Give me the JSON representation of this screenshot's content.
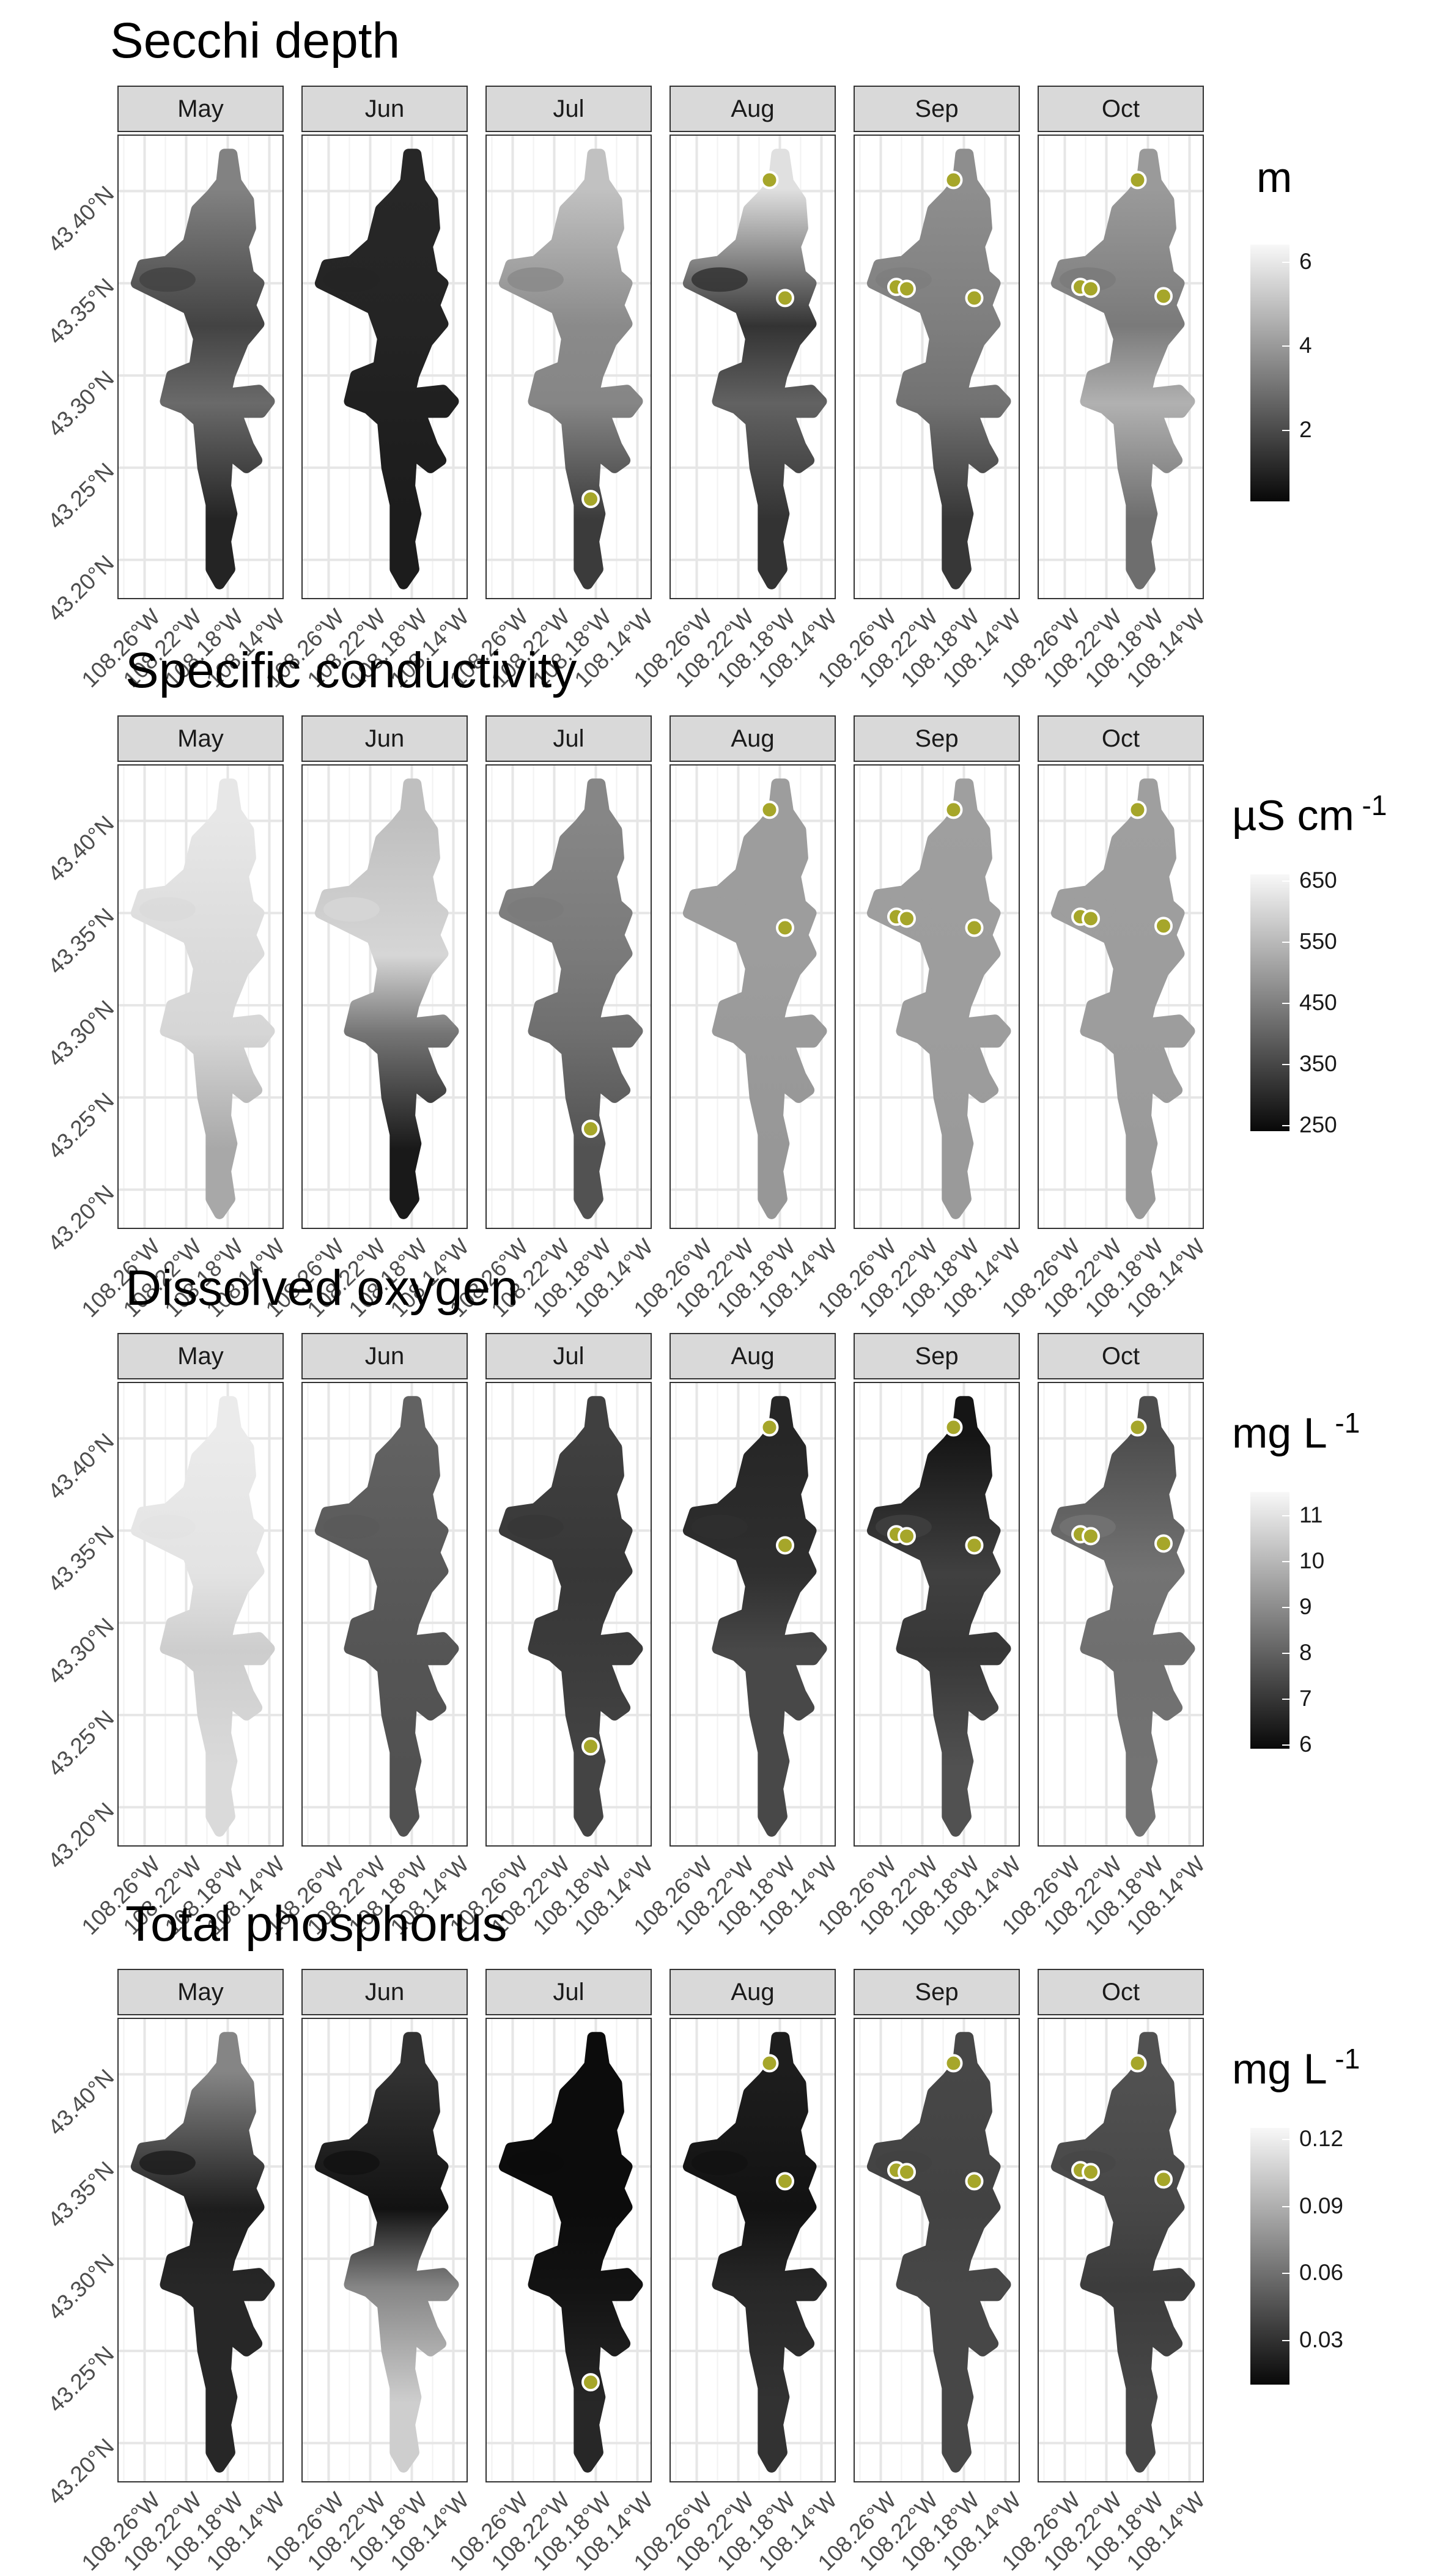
{
  "chart_data": [
    {
      "type": "heatmap",
      "title": "Secchi depth",
      "facets": [
        "May",
        "Jun",
        "Jul",
        "Aug",
        "Sep",
        "Oct"
      ],
      "y_tick_labels": [
        "43.40°N",
        "43.35°N",
        "43.30°N",
        "43.25°N",
        "43.20°N"
      ],
      "x_tick_labels": [
        "108.26°W",
        "108.22°W",
        "108.18°W",
        "108.14°W"
      ],
      "legend_title": "m",
      "legend_title_sup": "",
      "legend_ticks": [
        "6",
        "4",
        "2"
      ],
      "legend_tick_values": [
        6,
        4,
        2
      ],
      "legend_range": [
        0.3,
        6.4
      ],
      "grid": true,
      "legend_position": "right",
      "panel_values": {
        "May": {
          "north": 3.4,
          "west_arm": 1.8,
          "middle": 2.8,
          "south": 1.0
        },
        "Jun": {
          "north": 1.1,
          "west_arm": 1.0,
          "middle": 0.9,
          "south": 0.8
        },
        "Jul": {
          "north": 5.0,
          "west_arm": 3.6,
          "middle": 3.5,
          "south": 1.6
        },
        "Aug": {
          "north": 5.8,
          "west_arm": 1.4,
          "middle": 2.6,
          "south": 1.4
        },
        "Sep": {
          "north": 3.7,
          "west_arm": 3.3,
          "middle": 3.0,
          "south": 1.5
        },
        "Oct": {
          "north": 4.0,
          "west_arm": 3.2,
          "middle": 4.6,
          "south": 2.9
        }
      },
      "sites": {
        "May": [],
        "Jun": [],
        "Jul": [
          [
            -108.185,
            43.233
          ]
        ],
        "Aug": [
          [
            -108.19,
            43.406
          ],
          [
            -108.175,
            43.342
          ]
        ],
        "Sep": [
          [
            -108.245,
            43.348
          ],
          [
            -108.235,
            43.347
          ],
          [
            -108.19,
            43.406
          ],
          [
            -108.17,
            43.342
          ]
        ],
        "Oct": [
          [
            -108.245,
            43.348
          ],
          [
            -108.235,
            43.347
          ],
          [
            -108.19,
            43.406
          ],
          [
            -108.165,
            43.343
          ]
        ]
      }
    },
    {
      "type": "heatmap",
      "title": "Specific conductivity",
      "facets": [
        "May",
        "Jun",
        "Jul",
        "Aug",
        "Sep",
        "Oct"
      ],
      "y_tick_labels": [
        "43.40°N",
        "43.35°N",
        "43.30°N",
        "43.25°N",
        "43.20°N"
      ],
      "x_tick_labels": [
        "108.26°W",
        "108.22°W",
        "108.18°W",
        "108.14°W"
      ],
      "legend_title": "µS cm",
      "legend_title_sup": "-1",
      "legend_ticks": [
        "650",
        "550",
        "450",
        "350",
        "250"
      ],
      "legend_tick_values": [
        650,
        550,
        450,
        350,
        250
      ],
      "legend_range": [
        240,
        660
      ],
      "grid": true,
      "legend_position": "right",
      "panel_values": {
        "May": {
          "north": 630,
          "west_arm": 610,
          "middle": 600,
          "south": 520
        },
        "Jun": {
          "north": 560,
          "west_arm": 600,
          "middle": 430,
          "south": 270
        },
        "Jul": {
          "north": 460,
          "west_arm": 440,
          "middle": 420,
          "south": 370
        },
        "Aug": {
          "north": 500,
          "west_arm": 500,
          "middle": 495,
          "south": 490
        },
        "Sep": {
          "north": 505,
          "west_arm": 500,
          "middle": 500,
          "south": 495
        },
        "Oct": {
          "north": 505,
          "west_arm": 500,
          "middle": 500,
          "south": 495
        }
      },
      "sites": {
        "May": [],
        "Jun": [],
        "Jul": [
          [
            -108.185,
            43.233
          ]
        ],
        "Aug": [
          [
            -108.19,
            43.406
          ],
          [
            -108.175,
            43.342
          ]
        ],
        "Sep": [
          [
            -108.245,
            43.348
          ],
          [
            -108.235,
            43.347
          ],
          [
            -108.19,
            43.406
          ],
          [
            -108.17,
            43.342
          ]
        ],
        "Oct": [
          [
            -108.245,
            43.348
          ],
          [
            -108.235,
            43.347
          ],
          [
            -108.19,
            43.406
          ],
          [
            -108.165,
            43.343
          ]
        ]
      }
    },
    {
      "type": "heatmap",
      "title": "Dissolved oxygen",
      "facets": [
        "May",
        "Jun",
        "Jul",
        "Aug",
        "Sep",
        "Oct"
      ],
      "y_tick_labels": [
        "43.40°N",
        "43.35°N",
        "43.30°N",
        "43.25°N",
        "43.20°N"
      ],
      "x_tick_labels": [
        "108.26°W",
        "108.22°W",
        "108.18°W",
        "108.14°W"
      ],
      "legend_title": "mg L",
      "legend_title_sup": "-1",
      "legend_ticks": [
        "11",
        "10",
        "9",
        "8",
        "7",
        "6"
      ],
      "legend_tick_values": [
        11,
        10,
        9,
        8,
        7,
        6
      ],
      "legend_range": [
        5.9,
        11.5
      ],
      "grid": true,
      "legend_position": "right",
      "panel_values": {
        "May": {
          "north": 11.2,
          "west_arm": 11.0,
          "middle": 10.5,
          "south": 10.8
        },
        "Jun": {
          "north": 8.0,
          "west_arm": 7.8,
          "middle": 7.7,
          "south": 7.6
        },
        "Jul": {
          "north": 7.2,
          "west_arm": 7.0,
          "middle": 7.1,
          "south": 7.3
        },
        "Aug": {
          "north": 6.6,
          "west_arm": 6.8,
          "middle": 7.4,
          "south": 7.4
        },
        "Sep": {
          "north": 6.2,
          "west_arm": 7.2,
          "middle": 7.0,
          "south": 7.6
        },
        "Oct": {
          "north": 7.5,
          "west_arm": 8.4,
          "middle": 8.3,
          "south": 8.4
        }
      },
      "sites": {
        "May": [],
        "Jun": [],
        "Jul": [
          [
            -108.185,
            43.233
          ]
        ],
        "Aug": [
          [
            -108.19,
            43.406
          ],
          [
            -108.175,
            43.342
          ]
        ],
        "Sep": [
          [
            -108.245,
            43.348
          ],
          [
            -108.235,
            43.347
          ],
          [
            -108.19,
            43.406
          ],
          [
            -108.17,
            43.342
          ]
        ],
        "Oct": [
          [
            -108.245,
            43.348
          ],
          [
            -108.235,
            43.347
          ],
          [
            -108.19,
            43.406
          ],
          [
            -108.165,
            43.343
          ]
        ]
      }
    },
    {
      "type": "heatmap",
      "title": "Total phosphorus",
      "facets": [
        "May",
        "Jun",
        "Jul",
        "Aug",
        "Sep",
        "Oct"
      ],
      "y_tick_labels": [
        "43.40°N",
        "43.35°N",
        "43.30°N",
        "43.25°N",
        "43.20°N"
      ],
      "x_tick_labels": [
        "108.26°W",
        "108.22°W",
        "108.18°W",
        "108.14°W"
      ],
      "legend_title": "mg L",
      "legend_title_sup": "-1",
      "legend_ticks": [
        "0.12",
        "0.09",
        "0.06",
        "0.03"
      ],
      "legend_tick_values": [
        0.12,
        0.09,
        0.06,
        0.03
      ],
      "legend_range": [
        0.01,
        0.125
      ],
      "grid": true,
      "legend_position": "right",
      "panel_values": {
        "May": {
          "north": 0.07,
          "west_arm": 0.02,
          "middle": 0.025,
          "south": 0.025
        },
        "Jun": {
          "north": 0.03,
          "west_arm": 0.015,
          "middle": 0.07,
          "south": 0.105
        },
        "Jul": {
          "north": 0.012,
          "west_arm": 0.012,
          "middle": 0.015,
          "south": 0.025
        },
        "Aug": {
          "north": 0.02,
          "west_arm": 0.015,
          "middle": 0.025,
          "south": 0.03
        },
        "Sep": {
          "north": 0.04,
          "west_arm": 0.038,
          "middle": 0.04,
          "south": 0.04
        },
        "Oct": {
          "north": 0.045,
          "west_arm": 0.04,
          "middle": 0.035,
          "south": 0.04
        }
      },
      "sites": {
        "May": [],
        "Jun": [],
        "Jul": [
          [
            -108.185,
            43.233
          ]
        ],
        "Aug": [
          [
            -108.19,
            43.406
          ],
          [
            -108.175,
            43.342
          ]
        ],
        "Sep": [
          [
            -108.245,
            43.348
          ],
          [
            -108.235,
            43.347
          ],
          [
            -108.19,
            43.406
          ],
          [
            -108.17,
            43.342
          ]
        ],
        "Oct": [
          [
            -108.245,
            43.348
          ],
          [
            -108.235,
            43.347
          ],
          [
            -108.19,
            43.406
          ],
          [
            -108.165,
            43.343
          ]
        ]
      }
    }
  ],
  "colors": {
    "site_fill": "#a6a62a",
    "site_stroke": "#ffffff",
    "grid": "#e6e6e6",
    "strip_bg": "#d9d9d9"
  }
}
